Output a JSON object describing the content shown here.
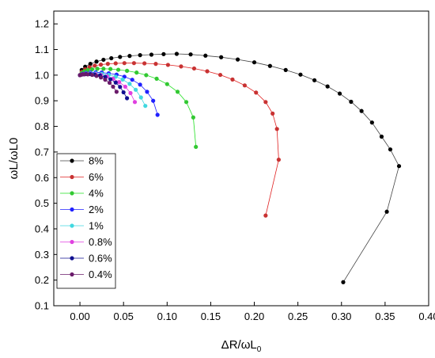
{
  "chart_data": {
    "type": "scatter",
    "title": "",
    "xlabel": "ΔR/ωL",
    "xlabel_sub": "0",
    "ylabel": "ωL/ωL0",
    "xlim": [
      -0.03,
      0.4
    ],
    "ylim": [
      0.1,
      1.25
    ],
    "xticks": [
      "0.00",
      "0.05",
      "0.10",
      "0.15",
      "0.20",
      "0.25",
      "0.30",
      "0.35",
      "0.40"
    ],
    "xtick_values": [
      0.0,
      0.05,
      0.1,
      0.15,
      0.2,
      0.25,
      0.3,
      0.35,
      0.4
    ],
    "yticks": [
      "0.1",
      "0.2",
      "0.3",
      "0.4",
      "0.5",
      "0.6",
      "0.7",
      "0.8",
      "0.9",
      "1.0",
      "1.1",
      "1.2"
    ],
    "ytick_values": [
      0.1,
      0.2,
      0.3,
      0.4,
      0.5,
      0.6,
      0.7,
      0.8,
      0.9,
      1.0,
      1.1,
      1.2
    ],
    "grid": false,
    "legend_placement": "lower-left",
    "series": [
      {
        "name": "8%",
        "color": "#000000",
        "line_color": "#444444",
        "x": [
          0.0,
          0.002,
          0.006,
          0.012,
          0.019,
          0.027,
          0.036,
          0.046,
          0.057,
          0.069,
          0.082,
          0.096,
          0.111,
          0.127,
          0.144,
          0.162,
          0.181,
          0.2,
          0.218,
          0.236,
          0.253,
          0.269,
          0.284,
          0.298,
          0.311,
          0.323,
          0.335,
          0.346,
          0.356,
          0.366,
          0.352,
          0.302
        ],
        "y": [
          1.0,
          1.02,
          1.033,
          1.044,
          1.053,
          1.06,
          1.066,
          1.071,
          1.075,
          1.078,
          1.08,
          1.082,
          1.083,
          1.081,
          1.076,
          1.07,
          1.061,
          1.05,
          1.036,
          1.02,
          1.002,
          0.98,
          0.956,
          0.928,
          0.896,
          0.86,
          0.815,
          0.76,
          0.71,
          0.645,
          0.467,
          0.192
        ]
      },
      {
        "name": "6%",
        "color": "#c83232",
        "line_color": "#e02020",
        "x": [
          0.0,
          0.002,
          0.006,
          0.011,
          0.017,
          0.024,
          0.032,
          0.041,
          0.051,
          0.062,
          0.074,
          0.087,
          0.101,
          0.116,
          0.131,
          0.146,
          0.161,
          0.175,
          0.189,
          0.202,
          0.213,
          0.221,
          0.226,
          0.228,
          0.213
        ],
        "y": [
          1.0,
          1.013,
          1.023,
          1.031,
          1.037,
          1.041,
          1.044,
          1.046,
          1.047,
          1.047,
          1.046,
          1.044,
          1.04,
          1.034,
          1.026,
          1.015,
          1.001,
          0.983,
          0.96,
          0.932,
          0.895,
          0.85,
          0.79,
          0.67,
          0.452
        ]
      },
      {
        "name": "4%",
        "color": "#32c832",
        "line_color": "#20e020",
        "x": [
          0.0,
          0.002,
          0.005,
          0.009,
          0.014,
          0.02,
          0.027,
          0.035,
          0.044,
          0.054,
          0.065,
          0.076,
          0.088,
          0.1,
          0.112,
          0.122,
          0.13,
          0.133
        ],
        "y": [
          1.0,
          1.008,
          1.015,
          1.02,
          1.023,
          1.025,
          1.025,
          1.024,
          1.021,
          1.017,
          1.01,
          1.0,
          0.986,
          0.965,
          0.935,
          0.895,
          0.835,
          0.72
        ]
      },
      {
        "name": "2%",
        "color": "#2020ff",
        "line_color": "#2020ff",
        "x": [
          0.0,
          0.003,
          0.007,
          0.012,
          0.018,
          0.025,
          0.033,
          0.042,
          0.051,
          0.06,
          0.069,
          0.077,
          0.084,
          0.089
        ],
        "y": [
          1.0,
          1.005,
          1.008,
          1.01,
          1.011,
          1.01,
          1.007,
          1.002,
          0.994,
          0.982,
          0.963,
          0.935,
          0.9,
          0.845
        ]
      },
      {
        "name": "1%",
        "color": "#40d8e0",
        "line_color": "#40d8e0",
        "x": [
          0.0,
          0.003,
          0.007,
          0.012,
          0.018,
          0.025,
          0.033,
          0.041,
          0.049,
          0.057,
          0.064,
          0.07,
          0.075
        ],
        "y": [
          1.0,
          1.004,
          1.006,
          1.007,
          1.007,
          1.005,
          1.001,
          0.994,
          0.983,
          0.966,
          0.943,
          0.913,
          0.88
        ]
      },
      {
        "name": "0.8%",
        "color": "#e040e0",
        "line_color": "#e040e0",
        "x": [
          0.0,
          0.003,
          0.007,
          0.012,
          0.018,
          0.024,
          0.031,
          0.038,
          0.045,
          0.052,
          0.058,
          0.063
        ],
        "y": [
          1.0,
          1.004,
          1.005,
          1.005,
          1.004,
          1.001,
          0.995,
          0.986,
          0.973,
          0.955,
          0.93,
          0.895
        ]
      },
      {
        "name": "0.6%",
        "color": "#101090",
        "line_color": "#101090",
        "x": [
          0.0,
          0.003,
          0.007,
          0.012,
          0.017,
          0.023,
          0.029,
          0.035,
          0.041,
          0.046,
          0.05,
          0.054
        ],
        "y": [
          1.0,
          1.003,
          1.004,
          1.004,
          1.002,
          0.999,
          0.993,
          0.984,
          0.971,
          0.954,
          0.933,
          0.91
        ]
      },
      {
        "name": "0.4%",
        "color": "#6a1a6a",
        "line_color": "#6a1a6a",
        "x": [
          0.0,
          0.002,
          0.005,
          0.009,
          0.014,
          0.019,
          0.024,
          0.029,
          0.034,
          0.038,
          0.042
        ],
        "y": [
          1.0,
          1.002,
          1.003,
          1.003,
          1.001,
          0.997,
          0.991,
          0.982,
          0.97,
          0.955,
          0.935
        ]
      }
    ]
  }
}
